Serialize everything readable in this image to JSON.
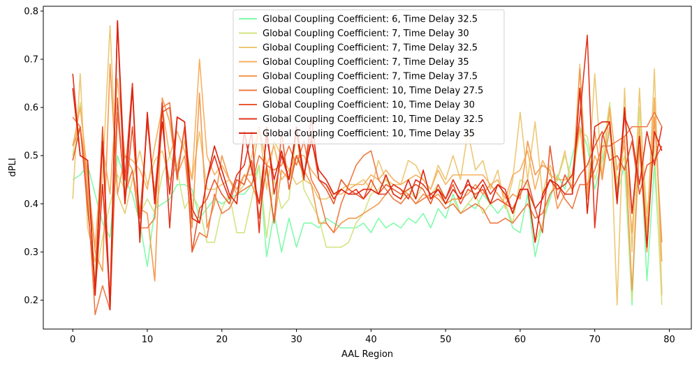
{
  "chart_data": {
    "type": "line",
    "title": "",
    "xlabel": "AAL Region",
    "ylabel": "dPLI",
    "xlim": [
      -3.95,
      82.95
    ],
    "ylim": [
      0.14,
      0.81
    ],
    "xticks": [
      0,
      10,
      20,
      30,
      40,
      50,
      60,
      70,
      80
    ],
    "yticks": [
      0.2,
      0.3,
      0.4,
      0.5,
      0.6,
      0.7,
      0.8
    ],
    "grid": false,
    "legend_position": "top-center",
    "series": [
      {
        "name": "Global Coupling Coefficient: 6, Time Delay 32.5",
        "color": "#7ffcaa",
        "values": [
          0.45,
          0.46,
          0.48,
          0.42,
          0.36,
          0.33,
          0.5,
          0.45,
          0.42,
          0.36,
          0.27,
          0.39,
          0.4,
          0.41,
          0.44,
          0.44,
          0.43,
          0.37,
          0.39,
          0.41,
          0.4,
          0.41,
          0.42,
          0.42,
          0.44,
          0.48,
          0.29,
          0.38,
          0.3,
          0.37,
          0.31,
          0.36,
          0.36,
          0.35,
          0.37,
          0.36,
          0.35,
          0.35,
          0.35,
          0.36,
          0.34,
          0.37,
          0.35,
          0.36,
          0.35,
          0.37,
          0.36,
          0.38,
          0.35,
          0.39,
          0.37,
          0.42,
          0.38,
          0.4,
          0.39,
          0.42,
          0.4,
          0.38,
          0.4,
          0.35,
          0.34,
          0.42,
          0.29,
          0.36,
          0.41,
          0.46,
          0.43,
          0.5,
          0.56,
          0.52,
          0.43,
          0.49,
          0.55,
          0.42,
          0.48,
          0.19,
          0.56,
          0.24,
          0.48,
          0.22
        ]
      },
      {
        "name": "Global Coupling Coefficient: 7, Time Delay 30",
        "color": "#d4e383",
        "values": [
          0.5,
          0.61,
          0.45,
          0.24,
          0.33,
          0.4,
          0.46,
          0.43,
          0.47,
          0.38,
          0.41,
          0.38,
          0.46,
          0.5,
          0.47,
          0.39,
          0.42,
          0.39,
          0.32,
          0.32,
          0.39,
          0.42,
          0.34,
          0.34,
          0.41,
          0.48,
          0.33,
          0.45,
          0.39,
          0.41,
          0.55,
          0.43,
          0.4,
          0.37,
          0.31,
          0.31,
          0.31,
          0.32,
          0.36,
          0.38,
          0.42,
          0.43,
          0.45,
          0.42,
          0.41,
          0.43,
          0.41,
          0.44,
          0.42,
          0.44,
          0.4,
          0.41,
          0.38,
          0.4,
          0.42,
          0.38,
          0.4,
          0.41,
          0.4,
          0.36,
          0.45,
          0.44,
          0.32,
          0.36,
          0.42,
          0.45,
          0.5,
          0.45,
          0.55,
          0.54,
          0.45,
          0.5,
          0.61,
          0.45,
          0.5,
          0.2,
          0.6,
          0.38,
          0.52,
          0.19
        ]
      },
      {
        "name": "Global Coupling Coefficient: 7, Time Delay 32.5",
        "color": "#ecc874",
        "values": [
          0.41,
          0.67,
          0.35,
          0.28,
          0.46,
          0.77,
          0.42,
          0.38,
          0.45,
          0.51,
          0.44,
          0.49,
          0.51,
          0.45,
          0.48,
          0.53,
          0.45,
          0.55,
          0.43,
          0.43,
          0.44,
          0.45,
          0.42,
          0.44,
          0.5,
          0.56,
          0.43,
          0.53,
          0.5,
          0.47,
          0.44,
          0.45,
          0.44,
          0.41,
          0.41,
          0.42,
          0.43,
          0.44,
          0.44,
          0.45,
          0.43,
          0.49,
          0.45,
          0.44,
          0.44,
          0.49,
          0.48,
          0.45,
          0.43,
          0.48,
          0.45,
          0.5,
          0.45,
          0.55,
          0.47,
          0.49,
          0.43,
          0.47,
          0.39,
          0.45,
          0.59,
          0.45,
          0.57,
          0.42,
          0.48,
          0.45,
          0.51,
          0.42,
          0.69,
          0.41,
          0.67,
          0.45,
          0.6,
          0.19,
          0.64,
          0.3,
          0.64,
          0.33,
          0.68,
          0.21
        ]
      },
      {
        "name": "Global Coupling Coefficient: 7, Time Delay 35",
        "color": "#f7b060",
        "values": [
          0.52,
          0.6,
          0.46,
          0.31,
          0.52,
          0.42,
          0.66,
          0.5,
          0.49,
          0.47,
          0.43,
          0.52,
          0.6,
          0.5,
          0.55,
          0.51,
          0.45,
          0.7,
          0.5,
          0.46,
          0.48,
          0.45,
          0.42,
          0.46,
          0.46,
          0.56,
          0.48,
          0.52,
          0.45,
          0.47,
          0.5,
          0.5,
          0.47,
          0.45,
          0.44,
          0.42,
          0.42,
          0.43,
          0.44,
          0.44,
          0.46,
          0.45,
          0.47,
          0.45,
          0.44,
          0.45,
          0.46,
          0.45,
          0.43,
          0.47,
          0.44,
          0.46,
          0.46,
          0.46,
          0.46,
          0.46,
          0.44,
          0.45,
          0.41,
          0.46,
          0.47,
          0.51,
          0.43,
          0.49,
          0.46,
          0.45,
          0.45,
          0.46,
          0.56,
          0.43,
          0.5,
          0.46,
          0.6,
          0.47,
          0.52,
          0.34,
          0.56,
          0.35,
          0.62,
          0.28
        ]
      },
      {
        "name": "Global Coupling Coefficient: 7, Time Delay 37.5",
        "color": "#f49a50",
        "values": [
          0.52,
          0.56,
          0.45,
          0.3,
          0.26,
          0.69,
          0.42,
          0.5,
          0.47,
          0.39,
          0.38,
          0.24,
          0.62,
          0.57,
          0.46,
          0.5,
          0.35,
          0.63,
          0.35,
          0.4,
          0.5,
          0.45,
          0.43,
          0.46,
          0.44,
          0.4,
          0.47,
          0.36,
          0.47,
          0.45,
          0.5,
          0.47,
          0.44,
          0.36,
          0.36,
          0.34,
          0.36,
          0.37,
          0.37,
          0.38,
          0.39,
          0.4,
          0.42,
          0.44,
          0.43,
          0.42,
          0.4,
          0.42,
          0.41,
          0.42,
          0.4,
          0.41,
          0.41,
          0.42,
          0.44,
          0.42,
          0.44,
          0.42,
          0.4,
          0.42,
          0.41,
          0.53,
          0.46,
          0.48,
          0.47,
          0.39,
          0.42,
          0.44,
          0.68,
          0.41,
          0.55,
          0.45,
          0.56,
          0.43,
          0.54,
          0.22,
          0.52,
          0.3,
          0.58,
          0.32
        ]
      },
      {
        "name": "Global Coupling Coefficient: 10, Time Delay 27.5",
        "color": "#ef7a43",
        "values": [
          0.58,
          0.56,
          0.42,
          0.17,
          0.23,
          0.18,
          0.59,
          0.42,
          0.47,
          0.35,
          0.35,
          0.37,
          0.6,
          0.61,
          0.46,
          0.56,
          0.3,
          0.34,
          0.33,
          0.42,
          0.38,
          0.39,
          0.42,
          0.43,
          0.44,
          0.5,
          0.48,
          0.47,
          0.48,
          0.52,
          0.48,
          0.53,
          0.45,
          0.42,
          0.36,
          0.34,
          0.4,
          0.44,
          0.48,
          0.5,
          0.51,
          0.45,
          0.43,
          0.41,
          0.4,
          0.42,
          0.4,
          0.41,
          0.42,
          0.41,
          0.39,
          0.4,
          0.38,
          0.39,
          0.4,
          0.39,
          0.36,
          0.36,
          0.37,
          0.36,
          0.38,
          0.4,
          0.37,
          0.38,
          0.42,
          0.44,
          0.41,
          0.39,
          0.44,
          0.44,
          0.47,
          0.52,
          0.52,
          0.53,
          0.54,
          0.56,
          0.56,
          0.56,
          0.59,
          0.56
        ]
      },
      {
        "name": "Global Coupling Coefficient: 10, Time Delay 30",
        "color": "#e85a30",
        "values": [
          0.49,
          0.56,
          0.39,
          0.23,
          0.56,
          0.18,
          0.62,
          0.4,
          0.56,
          0.37,
          0.57,
          0.42,
          0.59,
          0.6,
          0.45,
          0.56,
          0.3,
          0.39,
          0.41,
          0.45,
          0.42,
          0.4,
          0.45,
          0.44,
          0.49,
          0.37,
          0.48,
          0.36,
          0.55,
          0.43,
          0.5,
          0.46,
          0.54,
          0.45,
          0.43,
          0.4,
          0.45,
          0.43,
          0.42,
          0.41,
          0.45,
          0.42,
          0.44,
          0.43,
          0.42,
          0.43,
          0.44,
          0.43,
          0.4,
          0.44,
          0.41,
          0.44,
          0.4,
          0.43,
          0.42,
          0.43,
          0.4,
          0.41,
          0.4,
          0.39,
          0.42,
          0.45,
          0.39,
          0.34,
          0.52,
          0.41,
          0.46,
          0.43,
          0.46,
          0.48,
          0.52,
          0.55,
          0.49,
          0.5,
          0.47,
          0.53,
          0.42,
          0.48,
          0.49,
          0.52
        ]
      },
      {
        "name": "Global Coupling Coefficient: 10, Time Delay 32.5",
        "color": "#e2351e",
        "values": [
          0.67,
          0.5,
          0.49,
          0.21,
          0.44,
          0.2,
          0.78,
          0.45,
          0.65,
          0.33,
          0.58,
          0.4,
          0.61,
          0.35,
          0.58,
          0.57,
          0.39,
          0.36,
          0.45,
          0.5,
          0.45,
          0.41,
          0.46,
          0.48,
          0.55,
          0.34,
          0.56,
          0.42,
          0.5,
          0.45,
          0.55,
          0.45,
          0.58,
          0.45,
          0.44,
          0.41,
          0.43,
          0.42,
          0.43,
          0.41,
          0.43,
          0.42,
          0.42,
          0.44,
          0.43,
          0.41,
          0.45,
          0.44,
          0.42,
          0.43,
          0.41,
          0.45,
          0.42,
          0.44,
          0.43,
          0.45,
          0.42,
          0.44,
          0.43,
          0.38,
          0.43,
          0.43,
          0.39,
          0.41,
          0.45,
          0.43,
          0.44,
          0.46,
          0.58,
          0.75,
          0.35,
          0.54,
          0.57,
          0.41,
          0.58,
          0.54,
          0.44,
          0.55,
          0.48,
          0.56
        ]
      },
      {
        "name": "Global Coupling Coefficient: 10, Time Delay 35",
        "color": "#dc2410",
        "values": [
          0.64,
          0.5,
          0.49,
          0.21,
          0.53,
          0.18,
          0.78,
          0.4,
          0.64,
          0.32,
          0.59,
          0.4,
          0.57,
          0.42,
          0.58,
          0.57,
          0.37,
          0.36,
          0.45,
          0.52,
          0.47,
          0.42,
          0.4,
          0.55,
          0.47,
          0.4,
          0.54,
          0.45,
          0.51,
          0.45,
          0.56,
          0.46,
          0.53,
          0.47,
          0.45,
          0.42,
          0.43,
          0.42,
          0.42,
          0.43,
          0.43,
          0.42,
          0.46,
          0.42,
          0.41,
          0.45,
          0.41,
          0.47,
          0.41,
          0.43,
          0.4,
          0.43,
          0.41,
          0.45,
          0.41,
          0.44,
          0.4,
          0.44,
          0.42,
          0.38,
          0.43,
          0.43,
          0.32,
          0.42,
          0.45,
          0.44,
          0.42,
          0.42,
          0.64,
          0.38,
          0.56,
          0.57,
          0.57,
          0.4,
          0.6,
          0.38,
          0.54,
          0.31,
          0.55,
          0.51
        ]
      }
    ]
  }
}
